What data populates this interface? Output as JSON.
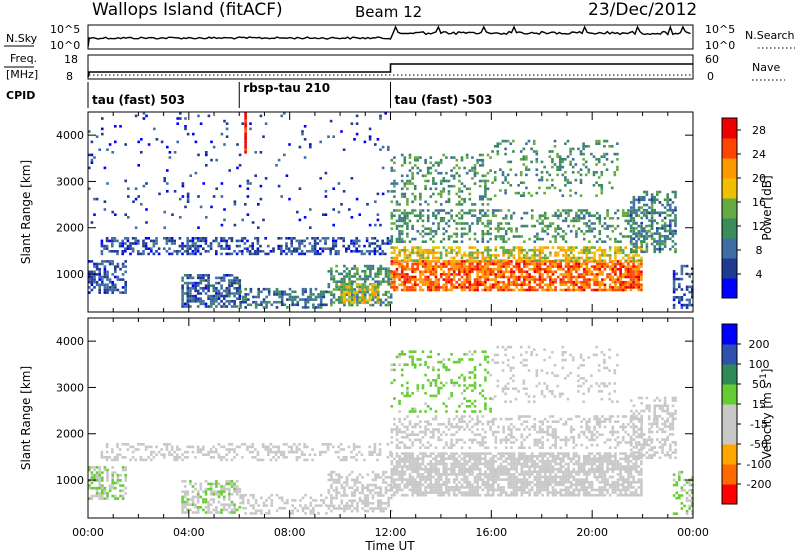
{
  "header": {
    "title": "Wallops Island (fitACF)",
    "beam": "Beam 12",
    "date": "23/Dec/2012"
  },
  "strip_labels": {
    "nsky": "N.Sky",
    "nsearch": "N.Search",
    "freq_line1": "Freq.",
    "freq_line2": "[MHz]",
    "nave": "Nave",
    "cpid": "CPID"
  },
  "strip_ticks": {
    "nsky_top": "10^5",
    "nsky_bottom": "10^0",
    "nsearch_top": "10^5",
    "nsearch_bottom": "10^0",
    "freq_top": "18",
    "freq_bottom": "8",
    "nave_top": "60",
    "nave_bottom": "0"
  },
  "cpid_segments": [
    {
      "label": "tau (fast) 503",
      "start_hour": 0
    },
    {
      "label": "rbsp-tau 210",
      "start_hour": 6
    },
    {
      "label": "tau (fast) -503",
      "start_hour": 12
    }
  ],
  "colors": {
    "power_scale": [
      "#0000ff",
      "#1f3a8f",
      "#3f6ea3",
      "#3a8c5a",
      "#66aa44",
      "#f0c000",
      "#ff9900",
      "#ff4400",
      "#ee0000"
    ],
    "velocity_scale": [
      "#ff0000",
      "#ff6a00",
      "#ffa500",
      "#c8c8c8",
      "#c8c8c8",
      "#66cc33",
      "#2e8b57",
      "#3050b0",
      "#0000ff"
    ]
  },
  "chart_data": [
    {
      "type": "heatmap",
      "name": "power",
      "xlabel": "",
      "ylabel": "Slant Range [km]",
      "xlim": [
        0,
        24
      ],
      "ylim": [
        180,
        4500
      ],
      "x_ticks": [
        "00:00",
        "04:00",
        "08:00",
        "12:00",
        "16:00",
        "20:00",
        "00:00"
      ],
      "y_ticks": [
        1000,
        2000,
        3000,
        4000
      ],
      "colorbar_label": "Power [dB]",
      "colorbar_ticks": [
        4,
        8,
        12,
        16,
        20,
        24,
        28
      ],
      "colorbar_range": [
        0,
        30
      ],
      "regions": [
        {
          "t0": 0.0,
          "t1": 1.5,
          "r0": 600,
          "r1": 1300,
          "value": 6,
          "density": 0.5
        },
        {
          "t0": 3.7,
          "t1": 6.0,
          "r0": 300,
          "r1": 1000,
          "value": 7,
          "density": 0.6
        },
        {
          "t0": 0.5,
          "t1": 12.0,
          "r0": 1450,
          "r1": 1800,
          "value": 6,
          "density": 0.45
        },
        {
          "t0": 6.0,
          "t1": 9.5,
          "r0": 300,
          "r1": 700,
          "value": 8,
          "density": 0.5
        },
        {
          "t0": 9.5,
          "t1": 12.0,
          "r0": 350,
          "r1": 1200,
          "value": 12,
          "density": 0.55
        },
        {
          "t0": 10.0,
          "t1": 11.5,
          "r0": 400,
          "r1": 800,
          "value": 18,
          "density": 0.55
        },
        {
          "t0": 12.0,
          "t1": 22.0,
          "r0": 650,
          "r1": 1300,
          "value": 24,
          "density": 0.75
        },
        {
          "t0": 12.0,
          "t1": 22.0,
          "r0": 1300,
          "r1": 1600,
          "value": 18,
          "density": 0.6
        },
        {
          "t0": 12.0,
          "t1": 22.5,
          "r0": 1700,
          "r1": 2400,
          "value": 12,
          "density": 0.35
        },
        {
          "t0": 12.0,
          "t1": 16.0,
          "r0": 2500,
          "r1": 3600,
          "value": 12,
          "density": 0.25
        },
        {
          "t0": 16.0,
          "t1": 21.0,
          "r0": 2700,
          "r1": 3900,
          "value": 12,
          "density": 0.2
        },
        {
          "t0": 21.5,
          "t1": 23.3,
          "r0": 1500,
          "r1": 2800,
          "value": 10,
          "density": 0.45
        },
        {
          "t0": 0.0,
          "t1": 12.0,
          "r0": 2000,
          "r1": 4500,
          "value": 5,
          "density": 0.04
        },
        {
          "t0": 6.2,
          "t1": 6.3,
          "r0": 3650,
          "r1": 4500,
          "value": 29,
          "density": 1.0
        },
        {
          "t0": 23.2,
          "t1": 24.0,
          "r0": 300,
          "r1": 1200,
          "value": 6,
          "density": 0.4
        }
      ]
    },
    {
      "type": "heatmap",
      "name": "velocity",
      "xlabel": "Time UT",
      "ylabel": "Slant Range [km]",
      "xlim": [
        0,
        24
      ],
      "ylim": [
        180,
        4500
      ],
      "x_ticks": [
        "00:00",
        "04:00",
        "08:00",
        "12:00",
        "16:00",
        "20:00",
        "00:00"
      ],
      "y_ticks": [
        1000,
        2000,
        3000,
        4000
      ],
      "colorbar_label": "Velocity [m s^-1]",
      "colorbar_ticks": [
        200,
        100,
        50,
        15,
        -15,
        -50,
        -100,
        -200
      ],
      "colorbar_range": [
        -250,
        250
      ],
      "regions": [
        {
          "t0": 0.0,
          "t1": 1.5,
          "r0": 600,
          "r1": 1300,
          "value": 30,
          "density": 0.5
        },
        {
          "t0": 3.7,
          "t1": 6.0,
          "r0": 300,
          "r1": 1000,
          "value": 25,
          "density": 0.5
        },
        {
          "t0": 6.0,
          "t1": 9.5,
          "r0": 300,
          "r1": 700,
          "value": -40,
          "density": 0.4
        },
        {
          "t0": 9.5,
          "t1": 12.0,
          "r0": 350,
          "r1": 1200,
          "value": 0,
          "density": 0.5
        },
        {
          "t0": 12.0,
          "t1": 22.0,
          "r0": 650,
          "r1": 1600,
          "value": 0,
          "density": 0.75
        },
        {
          "t0": 12.0,
          "t1": 22.5,
          "r0": 1700,
          "r1": 2400,
          "value": 0,
          "density": 0.35
        },
        {
          "t0": 12.0,
          "t1": 16.0,
          "r0": 2500,
          "r1": 3800,
          "value": 40,
          "density": 0.18
        },
        {
          "t0": 16.0,
          "t1": 21.0,
          "r0": 2700,
          "r1": 3900,
          "value": 0,
          "density": 0.15
        },
        {
          "t0": 21.5,
          "t1": 23.3,
          "r0": 1500,
          "r1": 2800,
          "value": 0,
          "density": 0.4
        },
        {
          "t0": 0.5,
          "t1": 12.0,
          "r0": 1450,
          "r1": 1800,
          "value": 0,
          "density": 0.3
        },
        {
          "t0": 23.2,
          "t1": 24.0,
          "r0": 300,
          "r1": 1200,
          "value": 30,
          "density": 0.3
        }
      ]
    }
  ]
}
